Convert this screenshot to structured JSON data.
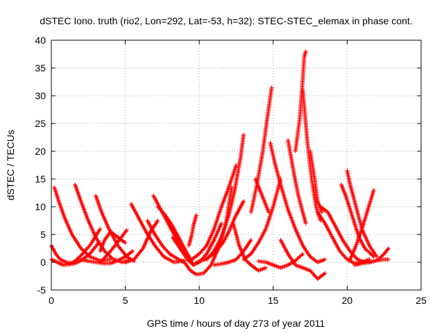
{
  "chart_data": {
    "type": "scatter",
    "title": "dSTEC Iono. truth (rio2, Lon=292, Lat=-53, h=32): STEC-STEC_elemax in phase cont.",
    "xlabel": "GPS time / hours of day 273 of year 2011",
    "ylabel": "dSTEC  / TECUs",
    "xlim": [
      0,
      25
    ],
    "ylim": [
      -5,
      40
    ],
    "xticks": [
      0,
      5,
      10,
      15,
      20,
      25
    ],
    "yticks": [
      -5,
      0,
      5,
      10,
      15,
      20,
      25,
      30,
      35,
      40
    ],
    "grid": true,
    "marker": "+",
    "color": "#ff0000",
    "series": [
      {
        "x": [
          0.0,
          0.3,
          0.6,
          1.0,
          1.5,
          2.0,
          2.6,
          3.2
        ],
        "y": [
          3.0,
          1.5,
          0.5,
          0.0,
          -0.3,
          0.3,
          1.5,
          3.5
        ]
      },
      {
        "x": [
          0.0,
          0.4,
          0.8,
          1.2,
          1.6,
          2.0,
          2.6,
          3.3
        ],
        "y": [
          0.5,
          0.0,
          -0.5,
          -0.4,
          0.2,
          1.2,
          3.0,
          6.0
        ]
      },
      {
        "x": [
          0.2,
          0.5,
          0.9,
          1.4,
          2.0,
          2.6,
          3.3,
          4.0
        ],
        "y": [
          13.5,
          11.0,
          8.0,
          5.0,
          2.5,
          1.0,
          0.3,
          0.5
        ]
      },
      {
        "x": [
          1.6,
          2.0,
          2.5,
          3.0,
          3.6,
          4.2,
          4.8,
          5.2
        ],
        "y": [
          14.0,
          11.0,
          7.5,
          4.5,
          2.0,
          0.5,
          0.0,
          0.3
        ]
      },
      {
        "x": [
          2.0,
          2.5,
          3.0,
          3.5,
          4.0,
          4.5,
          5.0,
          5.5
        ],
        "y": [
          0.5,
          0.2,
          0.0,
          -0.2,
          -0.2,
          0.3,
          1.0,
          2.0
        ]
      },
      {
        "x": [
          3.0,
          3.4,
          3.9,
          4.5,
          5.1,
          5.6
        ],
        "y": [
          12.0,
          9.0,
          6.0,
          3.0,
          1.0,
          0.2
        ]
      },
      {
        "x": [
          3.3,
          3.6,
          4.0,
          4.5,
          5.0
        ],
        "y": [
          2.0,
          4.0,
          5.5,
          4.5,
          3.5
        ]
      },
      {
        "x": [
          3.5,
          4.0,
          4.6,
          5.1
        ],
        "y": [
          0.5,
          2.0,
          4.0,
          5.8
        ]
      },
      {
        "x": [
          5.0,
          5.6,
          6.2,
          6.7,
          7.2
        ],
        "y": [
          0.0,
          0.5,
          2.5,
          5.5,
          7.5
        ]
      },
      {
        "x": [
          5.4,
          5.9,
          6.4,
          7.0,
          7.6,
          8.3,
          9.0
        ],
        "y": [
          10.5,
          8.0,
          5.5,
          3.0,
          1.0,
          0.0,
          0.3
        ]
      },
      {
        "x": [
          6.5,
          7.0,
          7.5,
          8.0,
          8.6,
          9.0
        ],
        "y": [
          7.5,
          5.0,
          3.0,
          1.5,
          0.5,
          0.0
        ]
      },
      {
        "x": [
          6.9,
          7.4,
          7.9,
          8.4,
          8.9,
          9.3
        ],
        "y": [
          12.0,
          9.5,
          7.0,
          4.5,
          2.5,
          1.0
        ]
      },
      {
        "x": [
          7.2,
          7.7,
          8.2,
          8.7,
          9.2,
          9.6
        ],
        "y": [
          10.0,
          8.5,
          6.5,
          4.0,
          1.5,
          -0.5
        ]
      },
      {
        "x": [
          8.2,
          8.7,
          9.2,
          9.6,
          10.0,
          10.5,
          11.0,
          11.5
        ],
        "y": [
          4.5,
          2.5,
          0.5,
          -0.5,
          0.0,
          1.5,
          4.0,
          7.0
        ]
      },
      {
        "x": [
          9.0,
          9.4,
          9.8,
          10.3,
          10.8,
          11.3,
          11.8,
          12.2
        ],
        "y": [
          0.0,
          -1.5,
          -2.2,
          -2.0,
          -0.5,
          2.5,
          7.0,
          13.5
        ]
      },
      {
        "x": [
          9.3,
          9.5,
          9.6,
          9.7,
          9.8
        ],
        "y": [
          3.0,
          5.0,
          6.5,
          7.5,
          8.5
        ]
      },
      {
        "x": [
          9.5,
          10.0,
          10.5,
          11.0,
          11.5,
          12.0,
          12.5
        ],
        "y": [
          0.5,
          1.5,
          3.0,
          6.0,
          10.0,
          13.5,
          17.5
        ]
      },
      {
        "x": [
          10.5,
          11.0,
          11.5,
          12.0,
          12.4,
          12.8,
          13.0
        ],
        "y": [
          0.5,
          2.0,
          4.5,
          8.5,
          13.0,
          19.0,
          23.0
        ]
      },
      {
        "x": [
          9.8,
          10.4,
          11.0,
          11.6,
          12.0,
          12.4,
          12.8,
          13.0
        ],
        "y": [
          0.0,
          0.5,
          1.5,
          3.5,
          5.5,
          8.0,
          10.0,
          11.0
        ]
      },
      {
        "x": [
          11.0,
          11.5,
          12.0,
          12.5,
          13.0,
          13.5
        ],
        "y": [
          -0.5,
          -0.3,
          0.0,
          0.5,
          2.0,
          4.0
        ]
      },
      {
        "x": [
          12.3,
          12.7,
          13.1,
          13.5,
          14.0,
          14.5
        ],
        "y": [
          7.0,
          3.0,
          0.5,
          -0.5,
          -1.5,
          -1.0
        ]
      },
      {
        "x": [
          13.0,
          13.5,
          14.0,
          14.5,
          15.0,
          15.5
        ],
        "y": [
          0.5,
          1.5,
          3.5,
          6.0,
          10.0,
          15.0
        ]
      },
      {
        "x": [
          13.5,
          13.9,
          14.3,
          14.6,
          14.9
        ],
        "y": [
          9.0,
          14.0,
          20.0,
          26.0,
          31.5
        ]
      },
      {
        "x": [
          13.8,
          14.1,
          14.4,
          14.7
        ],
        "y": [
          15.0,
          13.0,
          11.0,
          9.0
        ]
      },
      {
        "x": [
          14.0,
          14.5,
          15.0,
          15.5,
          16.0,
          16.5,
          17.0
        ],
        "y": [
          0.2,
          0.0,
          -0.5,
          -1.0,
          -0.5,
          0.3,
          1.5
        ]
      },
      {
        "x": [
          14.8,
          15.1,
          15.5,
          16.0,
          16.5,
          17.0,
          17.5,
          18.0,
          18.5
        ],
        "y": [
          21.5,
          18.0,
          14.0,
          9.5,
          6.0,
          3.0,
          1.0,
          0.0,
          0.5
        ]
      },
      {
        "x": [
          15.5,
          16.0,
          16.5,
          17.0,
          17.5,
          18.0,
          18.5
        ],
        "y": [
          4.0,
          1.5,
          -0.5,
          -1.0,
          -1.5,
          -3.0,
          -2.0
        ]
      },
      {
        "x": [
          16.0,
          16.2,
          16.4,
          16.7,
          17.0,
          17.2
        ],
        "y": [
          22.0,
          19.0,
          16.0,
          12.0,
          9.0,
          7.0
        ]
      },
      {
        "x": [
          16.5,
          16.8,
          17.0,
          17.1,
          17.2
        ],
        "y": [
          20.0,
          26.0,
          33.0,
          37.0,
          38.0
        ]
      },
      {
        "x": [
          17.0,
          17.3,
          17.6,
          17.9,
          18.2
        ],
        "y": [
          31.0,
          22.0,
          15.0,
          10.0,
          7.5
        ]
      },
      {
        "x": [
          17.5,
          17.8,
          18.0,
          18.3
        ],
        "y": [
          20.0,
          15.0,
          11.0,
          9.0
        ]
      },
      {
        "x": [
          18.0,
          18.5,
          19.0,
          19.5,
          20.0,
          20.5,
          21.0,
          21.5
        ],
        "y": [
          9.0,
          7.0,
          4.5,
          2.0,
          0.5,
          -0.2,
          0.0,
          0.5
        ]
      },
      {
        "x": [
          18.2,
          18.7,
          19.2,
          19.7,
          20.2,
          20.7,
          21.2
        ],
        "y": [
          10.0,
          9.0,
          6.5,
          4.0,
          2.0,
          0.5,
          0.0
        ]
      },
      {
        "x": [
          19.6,
          19.9,
          20.2,
          20.5,
          20.8,
          21.2,
          21.8
        ],
        "y": [
          14.0,
          12.0,
          9.5,
          7.0,
          4.5,
          2.5,
          1.0
        ]
      },
      {
        "x": [
          20.0,
          20.2,
          20.4,
          20.7,
          21.0,
          21.5,
          22.0
        ],
        "y": [
          16.5,
          14.0,
          12.0,
          9.0,
          6.0,
          3.0,
          1.0
        ]
      },
      {
        "x": [
          20.2,
          20.6,
          21.0,
          21.4,
          21.8
        ],
        "y": [
          0.5,
          3.0,
          6.0,
          9.5,
          13.0
        ]
      },
      {
        "x": [
          20.5,
          21.0,
          21.5,
          22.0,
          22.5,
          22.8
        ],
        "y": [
          -0.5,
          -0.2,
          0.0,
          0.3,
          1.5,
          2.5
        ]
      },
      {
        "x": [
          21.0,
          21.5,
          22.0,
          22.5,
          22.8
        ],
        "y": [
          0.0,
          0.0,
          0.3,
          0.5,
          0.5
        ]
      }
    ]
  }
}
